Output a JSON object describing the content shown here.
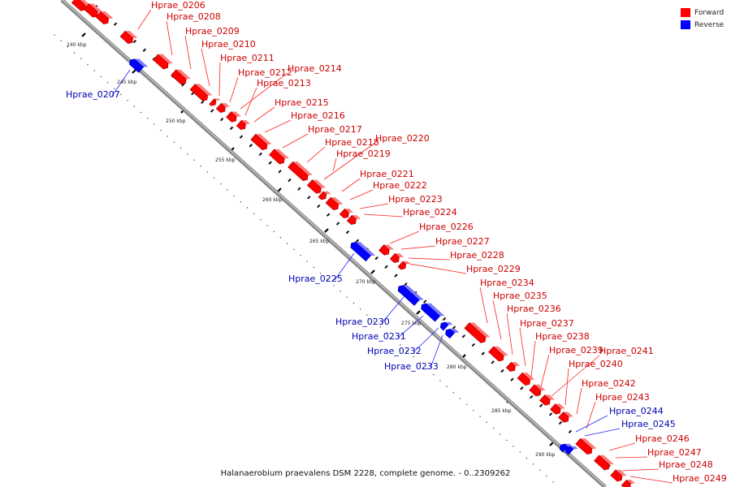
{
  "legend": {
    "items": [
      {
        "label": "Forward",
        "color": "#ff0000"
      },
      {
        "label": "Reverse",
        "color": "#0000ff"
      }
    ]
  },
  "caption": "Halanaerobium praevalens DSM 2228, complete genome. - 0..2309262",
  "scale": {
    "ticks": [
      "240 kbp",
      "245 kbp",
      "250 kbp",
      "255 kbp",
      "260 kbp",
      "265 kbp",
      "270 kbp",
      "275 kbp",
      "280 kbp",
      "285 kbp",
      "290 kbp"
    ]
  },
  "colors": {
    "forward": "#ff0000",
    "reverse": "#0000ff",
    "forward_label": "#cc0000",
    "reverse_label": "#0000b0",
    "backbone": "#888888"
  },
  "genes": {
    "forward": [
      "Hprae_0206",
      "Hprae_0208",
      "Hprae_0209",
      "Hprae_0210",
      "Hprae_0211",
      "Hprae_0212",
      "Hprae_0214",
      "Hprae_0213",
      "Hprae_0215",
      "Hprae_0216",
      "Hprae_0217",
      "Hprae_0218",
      "Hprae_0220",
      "Hprae_0219",
      "Hprae_0221",
      "Hprae_0222",
      "Hprae_0223",
      "Hprae_0224",
      "Hprae_0226",
      "Hprae_0227",
      "Hprae_0228",
      "Hprae_0229",
      "Hprae_0234",
      "Hprae_0235",
      "Hprae_0236",
      "Hprae_0237",
      "Hprae_0238",
      "Hprae_0239",
      "Hprae_0241",
      "Hprae_0240",
      "Hprae_0242",
      "Hprae_0243",
      "Hprae_0246",
      "Hprae_0247",
      "Hprae_0248",
      "Hprae_0249"
    ],
    "reverse": [
      "Hprae_0207",
      "Hprae_0225",
      "Hprae_0230",
      "Hprae_0231",
      "Hprae_0232",
      "Hprae_0233",
      "Hprae_0244",
      "Hprae_0245"
    ]
  }
}
